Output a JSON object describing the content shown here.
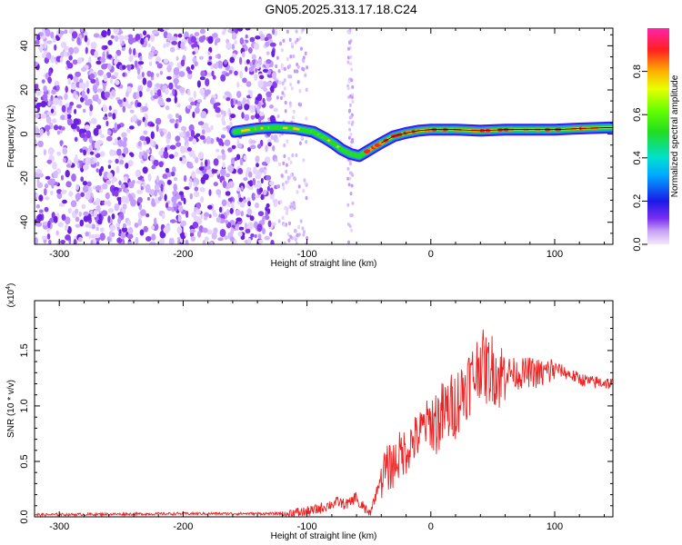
{
  "title": "GN05.2025.313.17.18.C24",
  "chart_data": [
    {
      "type": "heatmap",
      "xlabel": "Height of straight line (km)",
      "ylabel": "Frequency (Hz)",
      "xlim": [
        -320,
        147
      ],
      "ylim": [
        -50,
        48
      ],
      "x_ticks": [
        -300,
        -200,
        -100,
        0,
        100
      ],
      "x_tick_labels": [
        "-300",
        "-200",
        "-100",
        "0",
        "100"
      ],
      "y_ticks": [
        -40,
        -20,
        0,
        20,
        40
      ],
      "y_tick_labels": [
        "-40",
        "-20",
        "0",
        "20",
        "40"
      ],
      "noise_region_x": [
        -320,
        -125
      ],
      "sparse_noise_x": [
        -125,
        -100
      ],
      "noise_column_x": -65,
      "trace": {
        "x": [
          -158,
          -140,
          -125,
          -110,
          -95,
          -85,
          -78,
          -72,
          -65,
          -58,
          -52,
          -46,
          -40,
          -30,
          -20,
          -10,
          0,
          20,
          40,
          60,
          80,
          100,
          120,
          147
        ],
        "y": [
          1,
          2.5,
          3,
          2.5,
          1,
          -2,
          -4.5,
          -7,
          -9,
          -10,
          -8,
          -6,
          -4,
          -1,
          0.5,
          1.5,
          2,
          2,
          1.5,
          2,
          2,
          2,
          2.5,
          3
        ]
      },
      "colorbar": {
        "label": "Normalized spectral amplitude",
        "ticks": [
          0.0,
          0.2,
          0.4,
          0.6,
          0.8
        ],
        "tick_labels": [
          "0.0",
          "0.2",
          "0.4",
          "0.6",
          "0.8"
        ],
        "range": [
          0,
          1
        ]
      }
    },
    {
      "type": "line",
      "xlabel": "Height of straight line (km)",
      "ylabel": "SNR (10 * v/v)",
      "scale_label": "(x10",
      "scale_exp": "4",
      "scale_close": ")",
      "xlim": [
        -320,
        147
      ],
      "ylim": [
        0,
        1.95
      ],
      "x_ticks": [
        -300,
        -200,
        -100,
        0,
        100
      ],
      "x_tick_labels": [
        "-300",
        "-200",
        "-100",
        "0",
        "100"
      ],
      "y_ticks": [
        0.0,
        0.5,
        1.0,
        1.5
      ],
      "y_tick_labels": [
        "0.0",
        "0.5",
        "1.0",
        "1.5"
      ],
      "color": "#ee2222",
      "series": [
        {
          "name": "SNR",
          "x": [
            -320,
            -200,
            -120,
            -110,
            -100,
            -95,
            -90,
            -85,
            -80,
            -75,
            -70,
            -65,
            -60,
            -57,
            -55,
            -52,
            -50,
            -48,
            -45,
            -42,
            -40,
            -35,
            -30,
            -25,
            -20,
            -15,
            -10,
            -5,
            0,
            5,
            10,
            15,
            20,
            25,
            30,
            35,
            40,
            45,
            50,
            55,
            60,
            65,
            70,
            80,
            90,
            100,
            110,
            120,
            130,
            140,
            147
          ],
          "y": [
            0.02,
            0.03,
            0.03,
            0.04,
            0.05,
            0.06,
            0.08,
            0.1,
            0.12,
            0.14,
            0.12,
            0.13,
            0.2,
            0.06,
            0.12,
            0.05,
            0.02,
            0.08,
            0.18,
            0.3,
            0.4,
            0.45,
            0.5,
            0.58,
            0.62,
            0.7,
            0.75,
            0.85,
            0.88,
            0.9,
            0.95,
            1.0,
            1.05,
            1.15,
            1.25,
            1.3,
            1.45,
            1.35,
            1.38,
            1.3,
            1.33,
            1.32,
            1.3,
            1.32,
            1.3,
            1.35,
            1.3,
            1.25,
            1.22,
            1.22,
            1.2
          ]
        }
      ]
    }
  ]
}
